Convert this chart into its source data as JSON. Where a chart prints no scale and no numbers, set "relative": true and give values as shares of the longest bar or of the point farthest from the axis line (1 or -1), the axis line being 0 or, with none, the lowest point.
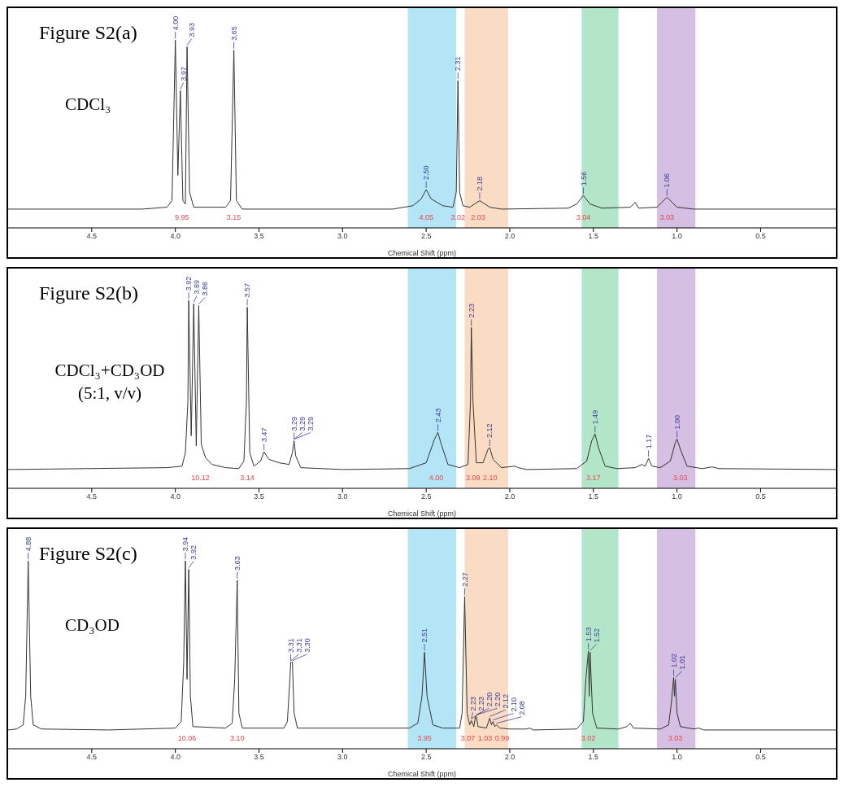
{
  "chart_data": [
    {
      "type": "line",
      "title": "Figure S2(a)",
      "subtitle": "CDCl₃",
      "xlabel": "Chemical Shift (ppm)",
      "relative": true,
      "color": "#333333",
      "x": [
        5.0,
        4.2,
        4.05,
        4.02,
        4.0,
        3.985,
        3.97,
        3.955,
        3.94,
        3.93,
        3.915,
        3.89,
        3.7,
        3.67,
        3.65,
        3.635,
        3.6,
        2.7,
        2.58,
        2.53,
        2.5,
        2.47,
        2.4,
        2.34,
        2.32,
        2.31,
        2.3,
        2.28,
        2.24,
        2.18,
        2.12,
        2.05,
        1.65,
        1.6,
        1.56,
        1.52,
        1.45,
        1.28,
        1.25,
        1.23,
        1.12,
        1.06,
        1.0,
        0.9,
        0.05
      ],
      "values": [
        0.1,
        0.1,
        0.11,
        0.145,
        1.0,
        0.28,
        0.73,
        0.145,
        0.127,
        0.964,
        0.19,
        0.11,
        0.11,
        0.145,
        0.946,
        0.145,
        0.1,
        0.1,
        0.118,
        0.154,
        0.204,
        0.154,
        0.118,
        0.11,
        0.19,
        0.784,
        0.19,
        0.118,
        0.11,
        0.145,
        0.11,
        0.1,
        0.105,
        0.127,
        0.172,
        0.127,
        0.105,
        0.11,
        0.136,
        0.105,
        0.11,
        0.163,
        0.11,
        0.1,
        0.1
      ],
      "xlim": [
        5.0,
        0.05
      ],
      "xticks": [
        4.5,
        {
          "value": 4,
          "label": "4.0"
        },
        3.5,
        {
          "value": 3,
          "label": "3.0"
        },
        2.5,
        {
          "value": 2,
          "label": "2.0"
        },
        1.5,
        {
          "value": 1,
          "label": "1.0"
        },
        0.5
      ],
      "bands": [
        {
          "axis": "x",
          "from": 2.61,
          "to": 2.32,
          "color": "#b3e5f7"
        },
        {
          "axis": "x",
          "from": 2.27,
          "to": 2.01,
          "color": "#f9dcc3"
        },
        {
          "axis": "x",
          "from": 1.57,
          "to": 1.35,
          "color": "#b3e6c9"
        },
        {
          "axis": "x",
          "from": 1.12,
          "to": 0.89,
          "color": "#d5bfe2"
        }
      ],
      "annotations": [
        {
          "text": "4.00",
          "x": 4.0,
          "y": 1.0
        },
        {
          "text": "3.97",
          "x": 3.97,
          "y": 0.73
        },
        {
          "text": "3.93",
          "x": 3.93,
          "y": 0.964
        },
        {
          "text": "3.65",
          "x": 3.65,
          "y": 0.946
        },
        {
          "text": "2.50",
          "x": 2.5,
          "y": 0.204
        },
        {
          "text": "2.31",
          "x": 2.31,
          "y": 0.784
        },
        {
          "text": "2.18",
          "x": 2.18,
          "y": 0.145
        },
        {
          "text": "1.56",
          "x": 1.56,
          "y": 0.172
        },
        {
          "text": "1.06",
          "x": 1.06,
          "y": 0.163
        },
        "9.95",
        "3.15",
        "4.05",
        "3.02",
        "2.03",
        "3.04",
        "3.03"
      ]
    },
    {
      "type": "line",
      "title": "Figure S2(b)",
      "subtitle": "CDCl₃+CD₃OD\n(5:1, v/v)",
      "xlabel": "Chemical Shift (ppm)",
      "relative": true,
      "color": "#333333",
      "x": [
        5.0,
        4.05,
        3.96,
        3.94,
        3.925,
        3.92,
        3.905,
        3.89,
        3.875,
        3.86,
        3.845,
        3.82,
        3.78,
        3.7,
        3.62,
        3.59,
        3.575,
        3.57,
        3.555,
        3.53,
        3.49,
        3.47,
        3.44,
        3.38,
        3.32,
        3.3,
        3.29,
        3.28,
        3.25,
        3.0,
        2.6,
        2.5,
        2.45,
        2.43,
        2.41,
        2.37,
        2.3,
        2.25,
        2.235,
        2.23,
        2.22,
        2.2,
        2.16,
        2.13,
        2.12,
        2.1,
        2.05,
        1.97,
        1.95,
        1.9,
        1.6,
        1.54,
        1.51,
        1.49,
        1.47,
        1.43,
        1.36,
        1.25,
        1.21,
        1.19,
        1.17,
        1.15,
        1.1,
        1.04,
        1.01,
        1.0,
        0.98,
        0.94,
        0.85,
        0.79,
        0.75,
        0.05
      ],
      "values": [
        0.1,
        0.11,
        0.118,
        0.19,
        0.46,
        1.0,
        0.28,
        0.982,
        0.226,
        0.973,
        0.235,
        0.163,
        0.127,
        0.11,
        0.105,
        0.145,
        0.46,
        0.964,
        0.19,
        0.118,
        0.145,
        0.195,
        0.154,
        0.136,
        0.127,
        0.19,
        0.253,
        0.172,
        0.11,
        0.1,
        0.105,
        0.136,
        0.262,
        0.298,
        0.235,
        0.127,
        0.11,
        0.127,
        0.46,
        0.856,
        0.46,
        0.136,
        0.136,
        0.208,
        0.217,
        0.154,
        0.11,
        0.118,
        0.11,
        0.1,
        0.105,
        0.145,
        0.253,
        0.289,
        0.217,
        0.118,
        0.105,
        0.11,
        0.127,
        0.118,
        0.159,
        0.118,
        0.11,
        0.145,
        0.244,
        0.262,
        0.208,
        0.118,
        0.105,
        0.114,
        0.105,
        0.1
      ],
      "xlim": [
        5.0,
        0.05
      ],
      "xticks": [
        4.5,
        {
          "value": 4,
          "label": "4.0"
        },
        3.5,
        {
          "value": 3,
          "label": "3.0"
        },
        2.5,
        {
          "value": 2,
          "label": "2.0"
        },
        1.5,
        {
          "value": 1,
          "label": "1.0"
        },
        0.5
      ],
      "bands": [
        {
          "axis": "x",
          "from": 2.61,
          "to": 2.32,
          "color": "#b3e5f7"
        },
        {
          "axis": "x",
          "from": 2.27,
          "to": 2.01,
          "color": "#f9dcc3"
        },
        {
          "axis": "x",
          "from": 1.57,
          "to": 1.35,
          "color": "#b3e6c9"
        },
        {
          "axis": "x",
          "from": 1.12,
          "to": 0.89,
          "color": "#d5bfe2"
        }
      ],
      "annotations": [
        {
          "text": "3.92",
          "x": 3.92,
          "y": 1.0
        },
        {
          "text": "3.89",
          "x": 3.89,
          "y": 0.982
        },
        {
          "text": "3.86",
          "x": 3.86,
          "y": 0.973
        },
        {
          "text": "3.57",
          "x": 3.57,
          "y": 0.964
        },
        {
          "text": "3.47",
          "x": 3.47,
          "y": 0.195
        },
        {
          "text": "3.29",
          "x": 3.29,
          "y": 0.253
        },
        {
          "text": "3.29",
          "x": 3.29,
          "y": 0.253
        },
        {
          "text": "3.29",
          "x": 3.29,
          "y": 0.253
        },
        {
          "text": "2.43",
          "x": 2.43,
          "y": 0.298
        },
        {
          "text": "2.23",
          "x": 2.23,
          "y": 0.856
        },
        {
          "text": "2.12",
          "x": 2.12,
          "y": 0.217
        },
        {
          "text": "1.49",
          "x": 1.49,
          "y": 0.289
        },
        {
          "text": "1.17",
          "x": 1.17,
          "y": 0.159
        },
        {
          "text": "1.00",
          "x": 1.0,
          "y": 0.262
        },
        "10.12",
        "3.14",
        "4.00",
        "3.09",
        "2.10",
        "3.17",
        "3.03"
      ]
    },
    {
      "type": "line",
      "title": "Figure S2(c)",
      "subtitle": "CD₃OD",
      "xlabel": "Chemical Shift (ppm)",
      "relative": true,
      "color": "#333333",
      "x": [
        5.0,
        4.95,
        4.91,
        4.895,
        4.88,
        4.865,
        4.85,
        4.8,
        4.4,
        4.0,
        3.965,
        3.95,
        3.94,
        3.93,
        3.92,
        3.91,
        3.895,
        3.7,
        3.66,
        3.645,
        3.63,
        3.62,
        3.6,
        3.35,
        3.33,
        3.315,
        3.31,
        3.3,
        3.29,
        3.27,
        2.6,
        2.55,
        2.525,
        2.51,
        2.495,
        2.46,
        2.4,
        2.3,
        2.285,
        2.27,
        2.255,
        2.24,
        2.23,
        2.215,
        2.205,
        2.2,
        2.19,
        2.14,
        2.12,
        2.11,
        2.1,
        2.09,
        2.08,
        2.06,
        2.0,
        1.9,
        1.88,
        1.86,
        1.6,
        1.56,
        1.545,
        1.53,
        1.525,
        1.52,
        1.505,
        1.48,
        1.35,
        1.3,
        1.28,
        1.26,
        1.1,
        1.05,
        1.035,
        1.02,
        1.015,
        1.01,
        1.0,
        0.98,
        0.9,
        0.87,
        0.84,
        0.05
      ],
      "values": [
        0.1,
        0.105,
        0.127,
        0.28,
        1.0,
        0.28,
        0.127,
        0.105,
        0.1,
        0.11,
        0.145,
        0.46,
        1.0,
        0.37,
        0.955,
        0.28,
        0.118,
        0.11,
        0.136,
        0.37,
        0.897,
        0.19,
        0.11,
        0.11,
        0.145,
        0.37,
        0.46,
        0.46,
        0.19,
        0.11,
        0.11,
        0.136,
        0.28,
        0.514,
        0.28,
        0.127,
        0.11,
        0.11,
        0.19,
        0.811,
        0.19,
        0.127,
        0.15,
        0.118,
        0.172,
        0.172,
        0.118,
        0.11,
        0.163,
        0.127,
        0.145,
        0.118,
        0.127,
        0.11,
        0.105,
        0.105,
        0.11,
        0.1,
        0.105,
        0.145,
        0.37,
        0.519,
        0.28,
        0.514,
        0.19,
        0.11,
        0.105,
        0.118,
        0.136,
        0.11,
        0.105,
        0.127,
        0.235,
        0.379,
        0.28,
        0.37,
        0.19,
        0.118,
        0.105,
        0.11,
        0.1,
        0.1
      ],
      "xlim": [
        5.0,
        0.05
      ],
      "xticks": [
        4.5,
        {
          "value": 4,
          "label": "4.0"
        },
        3.5,
        {
          "value": 3,
          "label": "3.0"
        },
        2.5,
        {
          "value": 2,
          "label": "2.0"
        },
        1.5,
        {
          "value": 1,
          "label": "1.0"
        },
        0.5
      ],
      "bands": [
        {
          "axis": "x",
          "from": 2.61,
          "to": 2.32,
          "color": "#b3e5f7"
        },
        {
          "axis": "x",
          "from": 2.27,
          "to": 2.01,
          "color": "#f9dcc3"
        },
        {
          "axis": "x",
          "from": 1.57,
          "to": 1.35,
          "color": "#b3e6c9"
        },
        {
          "axis": "x",
          "from": 1.12,
          "to": 0.89,
          "color": "#d5bfe2"
        }
      ],
      "annotations": [
        {
          "text": "4.88",
          "x": 4.88,
          "y": 1.0
        },
        {
          "text": "3.94",
          "x": 3.94,
          "y": 1.0
        },
        {
          "text": "3.92",
          "x": 3.92,
          "y": 0.955
        },
        {
          "text": "3.63",
          "x": 3.63,
          "y": 0.897
        },
        {
          "text": "3.31",
          "x": 3.31,
          "y": 0.46
        },
        {
          "text": "3.31",
          "x": 3.31,
          "y": 0.46
        },
        {
          "text": "3.30",
          "x": 3.3,
          "y": 0.46
        },
        {
          "text": "2.51",
          "x": 2.51,
          "y": 0.514
        },
        {
          "text": "2.27",
          "x": 2.27,
          "y": 0.811
        },
        {
          "text": "2.23",
          "x": 2.23,
          "y": 0.15
        },
        {
          "text": "2.23",
          "x": 2.23,
          "y": 0.15
        },
        {
          "text": "2.20",
          "x": 2.2,
          "y": 0.172
        },
        {
          "text": "2.20",
          "x": 2.2,
          "y": 0.172
        },
        {
          "text": "2.12",
          "x": 2.12,
          "y": 0.163
        },
        {
          "text": "2.10",
          "x": 2.1,
          "y": 0.145
        },
        {
          "text": "2.08",
          "x": 2.08,
          "y": 0.127
        },
        {
          "text": "1.53",
          "x": 1.53,
          "y": 0.519
        },
        {
          "text": "1.52",
          "x": 1.52,
          "y": 0.514
        },
        {
          "text": "1.02",
          "x": 1.02,
          "y": 0.379
        },
        {
          "text": "1.01",
          "x": 1.01,
          "y": 0.37
        },
        "10.06",
        "3.10",
        "3.95",
        "3.07",
        "1.03",
        "0.99",
        "3.02",
        "3.03"
      ]
    }
  ]
}
